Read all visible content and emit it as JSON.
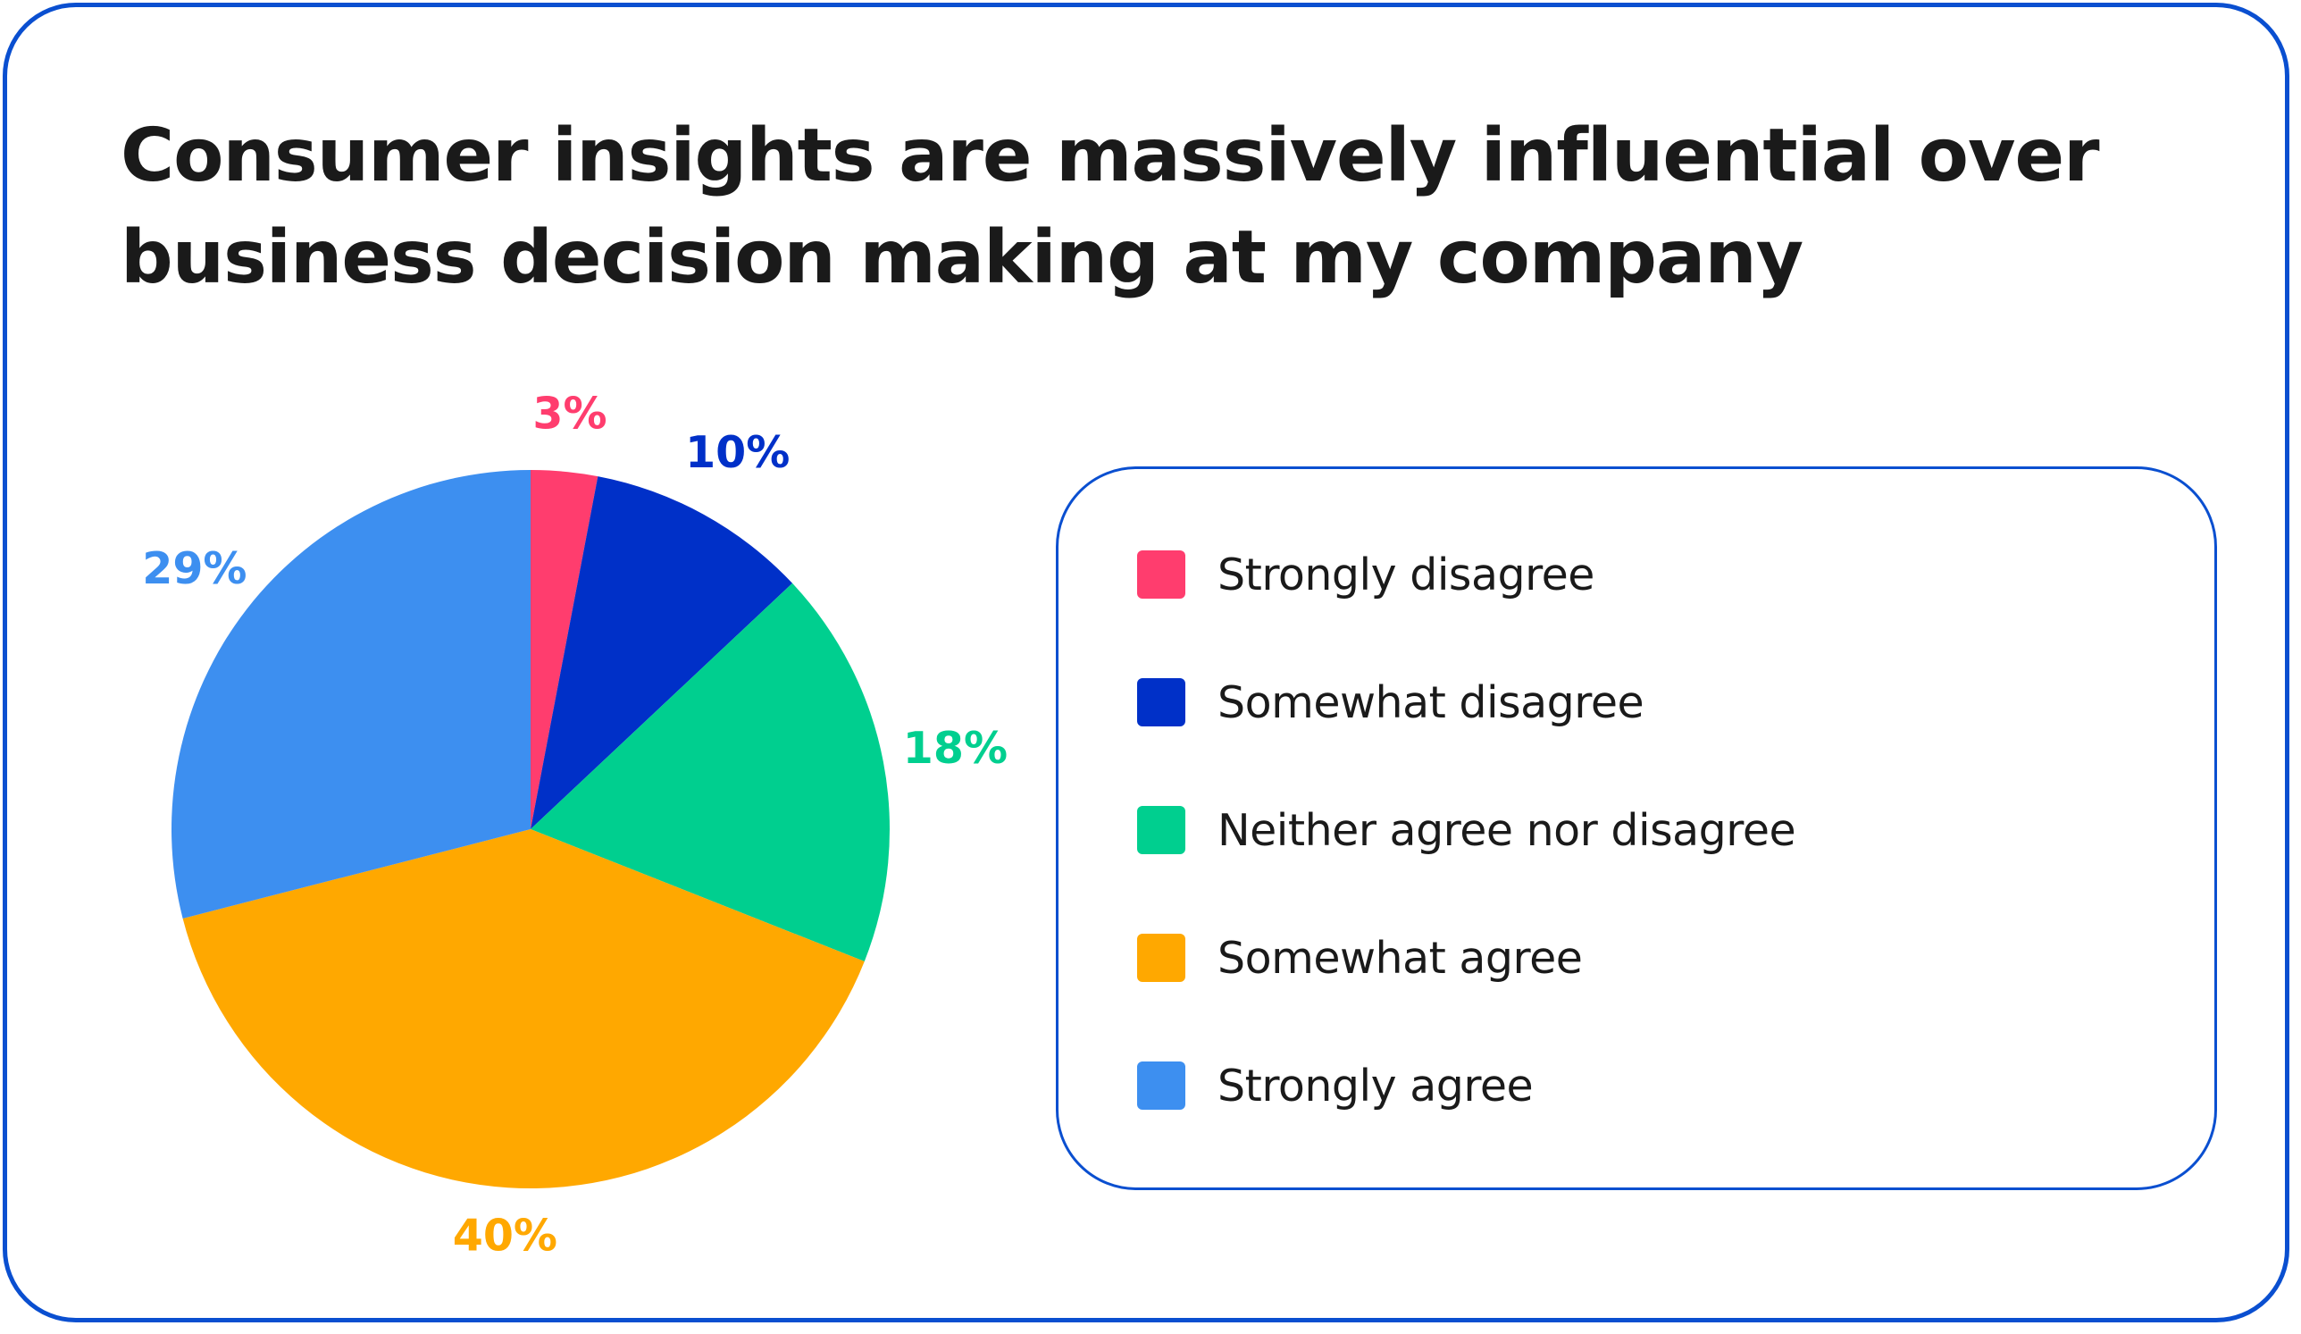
{
  "chart_data": {
    "type": "pie",
    "title_lines": [
      "Consumer insights are massively influential over",
      "business decision making at my company"
    ],
    "categories": [
      "Strongly disagree",
      "Somewhat disagree",
      "Neither agree nor disagree",
      "Somewhat agree",
      "Strongly agree"
    ],
    "values": [
      3,
      10,
      18,
      40,
      29
    ],
    "labels": [
      "3%",
      "10%",
      "18%",
      "40%",
      "29%"
    ],
    "colors": [
      "#ff3d6e",
      "#0030c8",
      "#00cf8f",
      "#ffa800",
      "#3d8ff0"
    ],
    "legend": "right"
  }
}
